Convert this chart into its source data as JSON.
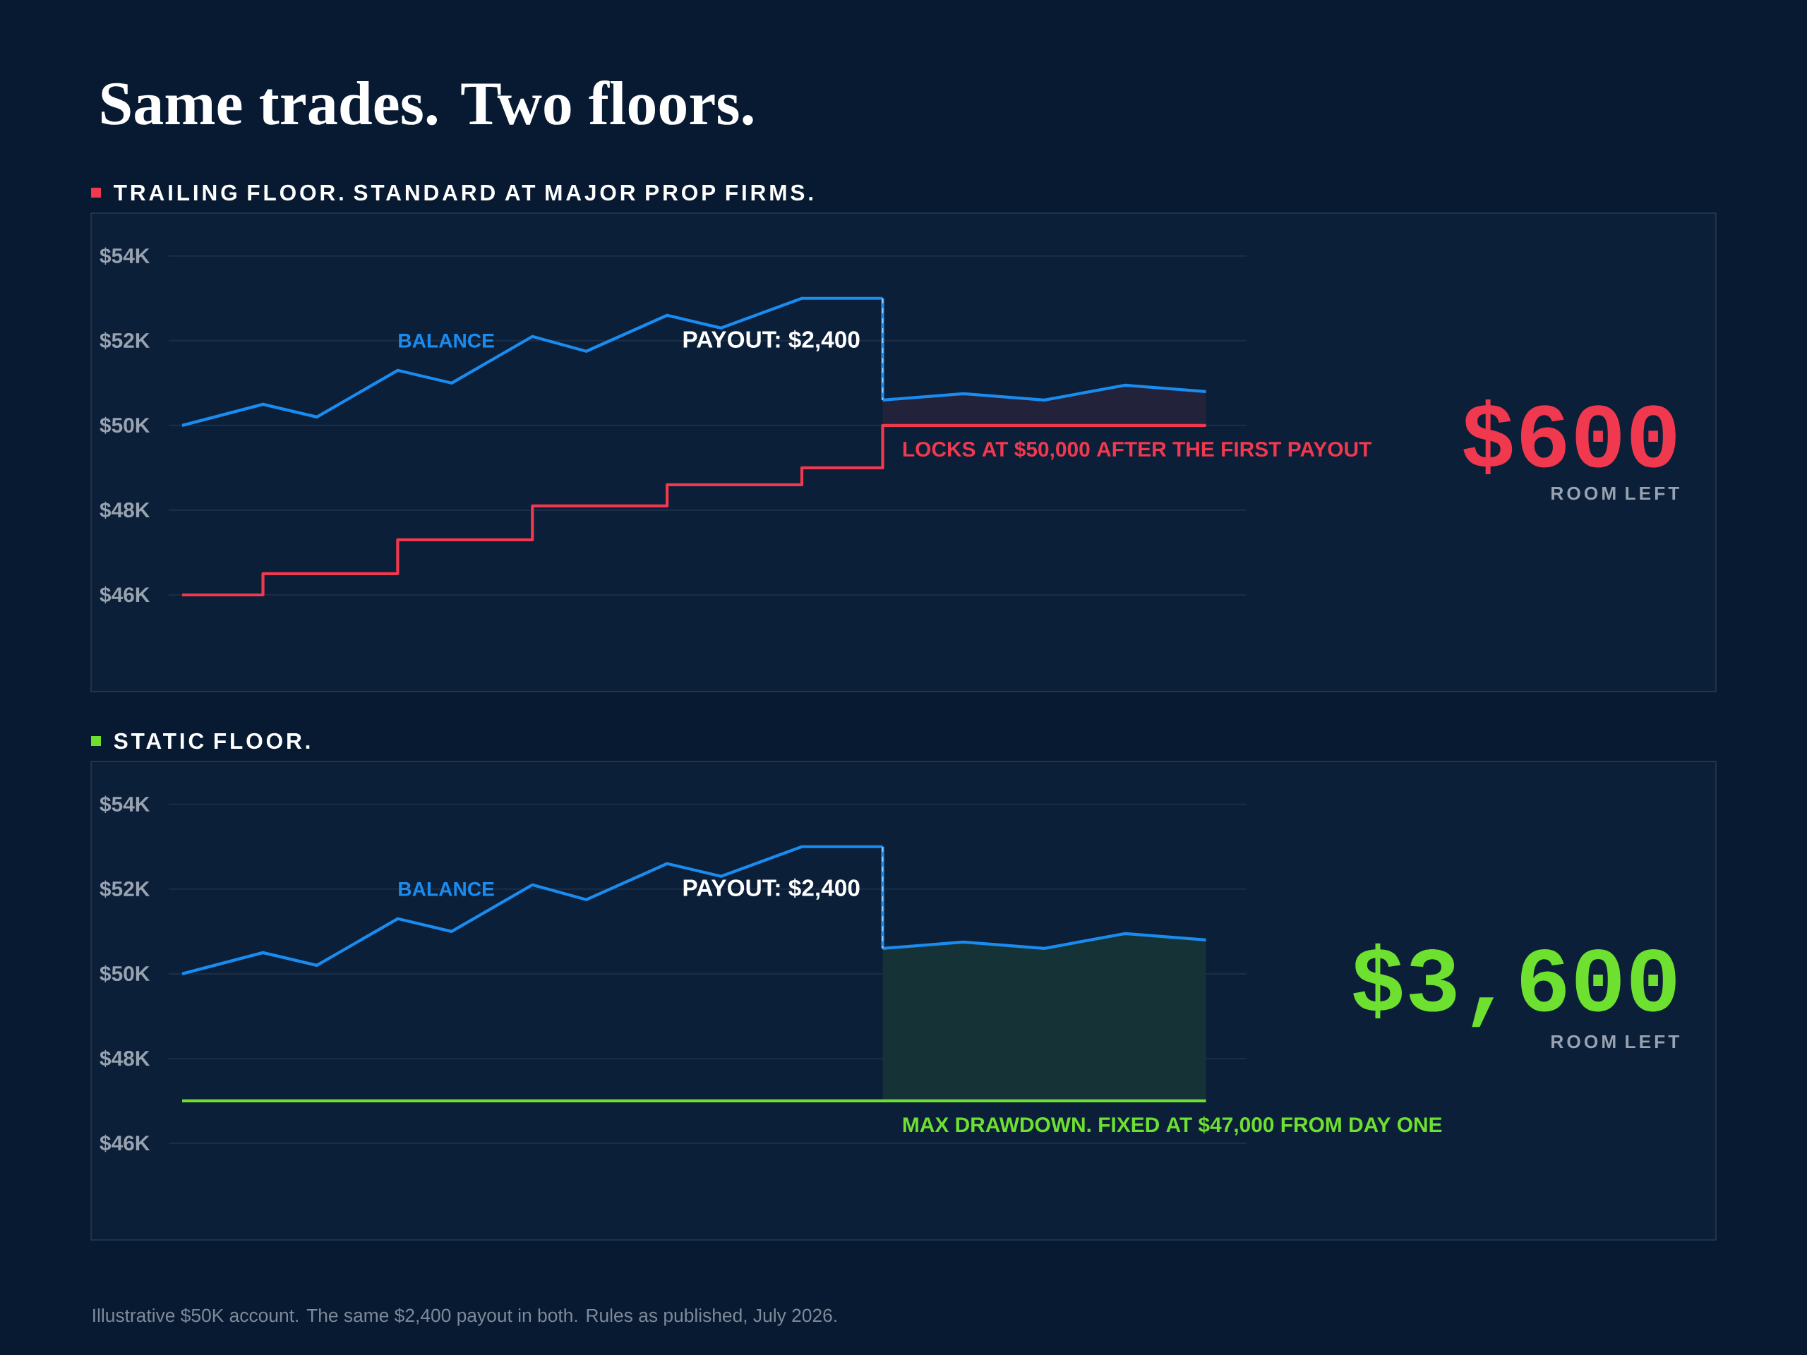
{
  "chart_data": [
    {
      "type": "line",
      "title": "Same trades. Two floors.",
      "subtitle": "TRAILING FLOOR. STANDARD AT MAJOR PROP FIRMS.",
      "categories": [
        null,
        null,
        null,
        null,
        null,
        null,
        null,
        null,
        null,
        null,
        null,
        null,
        null,
        null,
        null,
        null,
        null,
        null,
        null,
        null,
        null,
        null,
        null,
        null,
        null,
        null,
        null,
        null,
        null,
        null,
        null,
        null,
        null,
        null,
        null,
        null,
        null,
        null,
        null,
        null
      ],
      "ylim": [
        46000,
        54000
      ],
      "yticks": [
        {
          "value": 46000,
          "label": "$46K"
        },
        {
          "value": 48000,
          "label": "$48K"
        },
        {
          "value": 50000,
          "label": "$50K"
        },
        {
          "value": 52000,
          "label": "$52K"
        },
        {
          "value": 54000,
          "label": "$54K"
        }
      ],
      "grid": "y",
      "tick_labels": "y",
      "legend": false,
      "series": [
        {
          "type": "area",
          "color": "#1a8cf0",
          "values": [
            null,
            null,
            null,
            null,
            null,
            null,
            null,
            null,
            null,
            null,
            null,
            null,
            null,
            null,
            null,
            null,
            null,
            null,
            null,
            null,
            null,
            null,
            null,
            null,
            null,
            null,
            50600,
            null,
            null,
            50750,
            null,
            null,
            50600,
            null,
            null,
            50950,
            null,
            null,
            50800,
            null
          ]
        },
        {
          "type": "line",
          "name": "BALANCE",
          "color": "#1a8cf0",
          "values": [
            50000,
            null,
            null,
            50500,
            null,
            50200,
            null,
            null,
            51300,
            null,
            51000,
            null,
            null,
            52100,
            null,
            51750,
            null,
            null,
            52600,
            null,
            52300,
            null,
            null,
            53000,
            null,
            null,
            53000,
            null,
            null,
            null,
            null,
            null,
            null,
            null,
            null,
            null,
            null,
            null,
            null,
            null
          ]
        },
        {
          "type": "step",
          "name": "LOCKS AT $50,000 AFTER THE FIRST PAYOUT",
          "color": "#f0394f",
          "values": [
            46000,
            null,
            null,
            46500,
            null,
            null,
            null,
            null,
            47300,
            null,
            null,
            null,
            null,
            48100,
            null,
            null,
            null,
            null,
            48600,
            null,
            null,
            null,
            null,
            49000,
            null,
            null,
            50000,
            null,
            null,
            null,
            null,
            null,
            null,
            null,
            null,
            null,
            null,
            null,
            50000,
            null
          ]
        }
      ],
      "annotations": [
        "PAYOUT: $2,400",
        "$600",
        "ROOM LEFT"
      ]
    },
    {
      "type": "line",
      "subtitle": "STATIC FLOOR.",
      "categories": [
        null,
        null,
        null,
        null,
        null,
        null,
        null,
        null,
        null,
        null,
        null,
        null,
        null,
        null,
        null,
        null,
        null,
        null,
        null,
        null,
        null,
        null,
        null,
        null,
        null,
        null,
        null,
        null,
        null,
        null,
        null,
        null,
        null,
        null,
        null,
        null,
        null,
        null,
        null,
        null
      ],
      "ylim": [
        46000,
        54000
      ],
      "yticks": [
        {
          "value": 46000,
          "label": "$46K"
        },
        {
          "value": 48000,
          "label": "$48K"
        },
        {
          "value": 50000,
          "label": "$50K"
        },
        {
          "value": 52000,
          "label": "$52K"
        },
        {
          "value": 54000,
          "label": "$54K"
        }
      ],
      "grid": "y",
      "tick_labels": "y",
      "legend": false,
      "series": [
        {
          "type": "area",
          "color": "#1a8cf0",
          "values": [
            null,
            null,
            null,
            null,
            null,
            null,
            null,
            null,
            null,
            null,
            null,
            null,
            null,
            null,
            null,
            null,
            null,
            null,
            null,
            null,
            null,
            null,
            null,
            null,
            null,
            null,
            50600,
            null,
            null,
            50750,
            null,
            null,
            50600,
            null,
            null,
            50950,
            null,
            null,
            50800,
            null
          ]
        },
        {
          "type": "line",
          "name": "BALANCE",
          "color": "#1a8cf0",
          "values": [
            50000,
            null,
            null,
            50500,
            null,
            50200,
            null,
            null,
            51300,
            null,
            51000,
            null,
            null,
            52100,
            null,
            51750,
            null,
            null,
            52600,
            null,
            52300,
            null,
            null,
            53000,
            null,
            null,
            53000,
            null,
            null,
            null,
            null,
            null,
            null,
            null,
            null,
            null,
            null,
            null,
            null,
            null
          ]
        },
        {
          "type": "line",
          "name": "MAX DRAWDOWN. FIXED AT $47,000 FROM DAY ONE",
          "color": "#6ee030",
          "values": [
            47000,
            null,
            null,
            null,
            null,
            null,
            null,
            null,
            null,
            null,
            null,
            null,
            null,
            null,
            null,
            null,
            null,
            null,
            null,
            null,
            null,
            null,
            null,
            null,
            null,
            null,
            null,
            null,
            null,
            null,
            null,
            null,
            null,
            null,
            null,
            null,
            null,
            null,
            47000,
            null
          ]
        }
      ],
      "annotations": [
        "PAYOUT: $2,400",
        "$3,600",
        "ROOM LEFT",
        "Illustrative $50K account. The same $2,400 payout in both. Rules as published, July 2026."
      ]
    }
  ]
}
